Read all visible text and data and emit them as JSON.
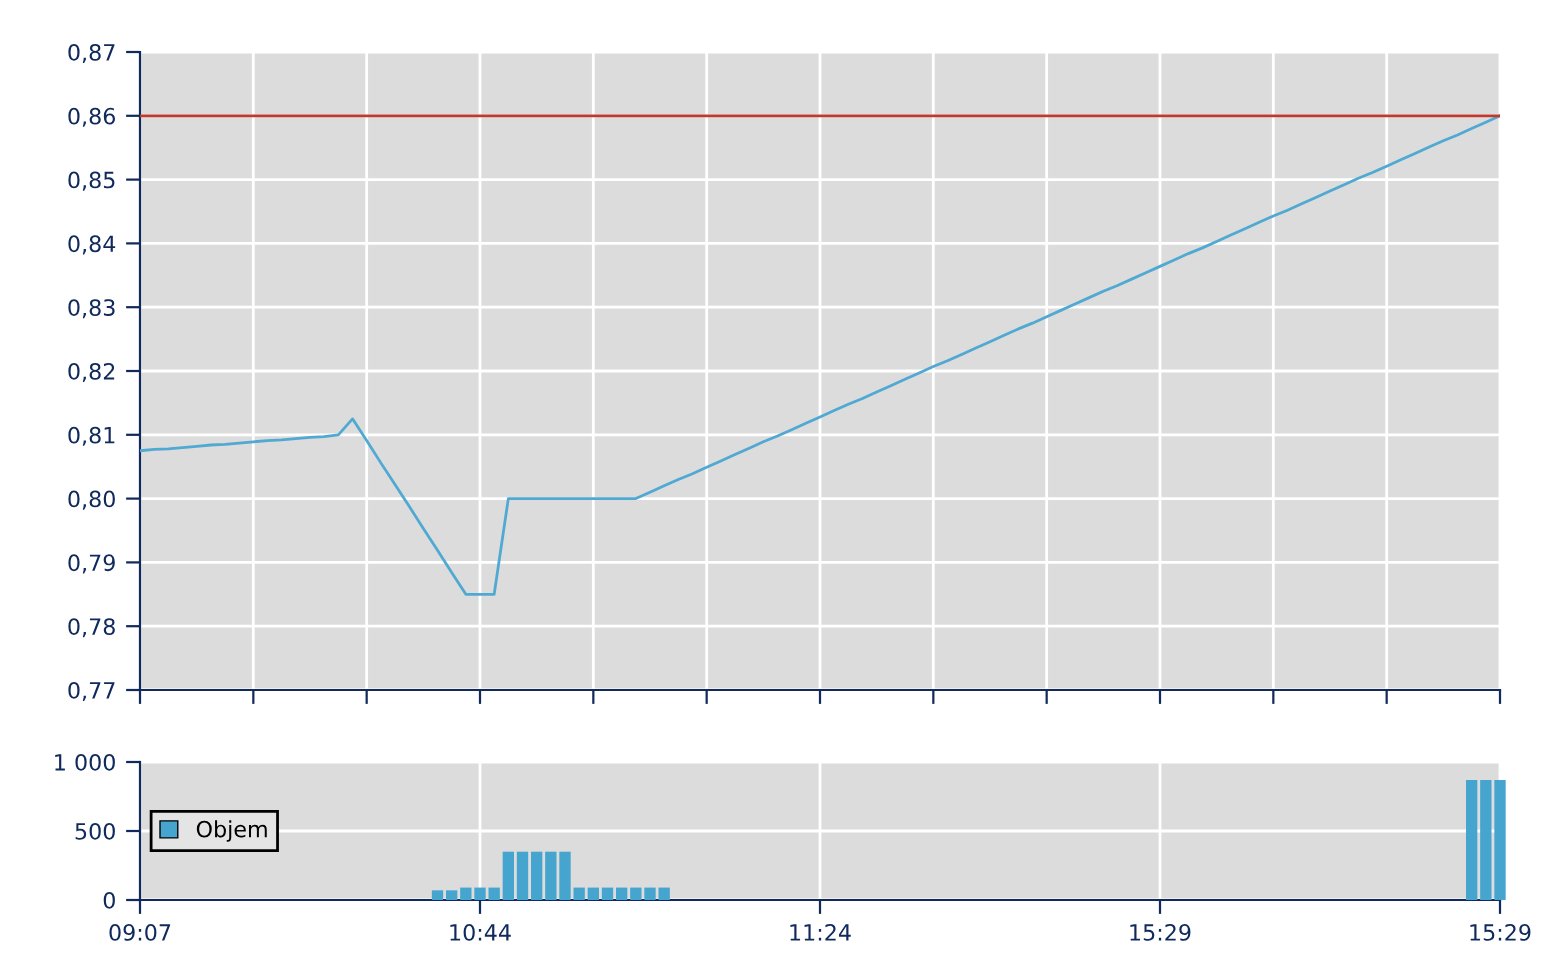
{
  "chart_data": [
    {
      "type": "line",
      "categories": [
        null,
        null,
        null,
        null,
        null,
        null,
        null,
        null,
        null,
        null,
        null,
        null,
        null,
        null,
        null,
        null,
        null,
        null,
        null,
        null,
        null,
        null,
        null,
        null,
        null,
        null,
        null,
        null,
        null,
        null,
        null,
        null,
        null,
        null,
        null,
        null,
        null,
        null,
        null,
        null,
        null,
        null,
        null,
        null,
        null,
        null,
        null,
        null,
        null,
        null,
        null,
        null,
        null,
        null,
        null,
        null,
        null,
        null,
        null,
        null,
        null,
        null,
        null,
        null,
        null,
        null,
        null,
        null,
        null,
        null,
        null,
        null,
        null,
        null,
        null,
        null,
        null,
        null,
        null,
        null,
        null,
        null,
        null,
        null,
        null,
        null,
        null,
        null,
        null,
        null,
        null,
        null,
        null,
        null,
        null,
        null,
        null
      ],
      "series": [
        {
          "color": "#4fa9d2",
          "values": [
            0.8075,
            0.8077,
            0.8078,
            0.808,
            0.8082,
            0.8084,
            0.8085,
            0.8087,
            0.8089,
            0.8091,
            0.8092,
            0.8094,
            0.8096,
            0.8097,
            0.81,
            0.8125,
            0.8091,
            0.8056,
            0.8022,
            0.7988,
            0.7953,
            0.7919,
            0.7884,
            0.785,
            0.785,
            0.785,
            0.8,
            0.8,
            0.8,
            0.8,
            0.8,
            0.8,
            0.8,
            0.8,
            0.8,
            0.8,
            0.801,
            0.802,
            0.803,
            0.8039,
            0.8049,
            0.8059,
            0.8069,
            0.8079,
            0.8089,
            0.8098,
            0.8108,
            0.8118,
            0.8128,
            0.8138,
            0.8148,
            0.8157,
            0.8167,
            0.8177,
            0.8187,
            0.8197,
            0.8207,
            0.8216,
            0.8226,
            0.8236,
            0.8246,
            0.8256,
            0.8266,
            0.8275,
            0.8285,
            0.8295,
            0.8305,
            0.8315,
            0.8325,
            0.8334,
            0.8344,
            0.8354,
            0.8364,
            0.8374,
            0.8384,
            0.8393,
            0.8403,
            0.8413,
            0.8423,
            0.8433,
            0.8443,
            0.8452,
            0.8462,
            0.8472,
            0.8482,
            0.8492,
            0.8502,
            0.8511,
            0.8521,
            0.8531,
            0.8541,
            0.8551,
            0.8561,
            0.857,
            0.858,
            0.859,
            0.86
          ]
        }
      ],
      "ylim": [
        0.77,
        0.87
      ],
      "yticks": [
        {
          "value": 0.77,
          "label": "0,77"
        },
        {
          "value": 0.78,
          "label": "0,78"
        },
        {
          "value": 0.79,
          "label": "0,79"
        },
        {
          "value": 0.8,
          "label": "0,80"
        },
        {
          "value": 0.81,
          "label": "0,81"
        },
        {
          "value": 0.82,
          "label": "0,82"
        },
        {
          "value": 0.83,
          "label": "0,83"
        },
        {
          "value": 0.84,
          "label": "0,84"
        },
        {
          "value": 0.85,
          "label": "0,85"
        },
        {
          "value": 0.86,
          "label": "0,86"
        },
        {
          "value": 0.87,
          "label": "0,87"
        }
      ],
      "ref_lines": [
        {
          "axis": "y",
          "value": 0.86,
          "color": "#c0392b"
        }
      ],
      "grid": true
    },
    {
      "type": "bar",
      "categories": [
        "09:07",
        null,
        null,
        null,
        null,
        null,
        null,
        null,
        null,
        null,
        null,
        null,
        null,
        null,
        null,
        null,
        null,
        null,
        null,
        null,
        null,
        null,
        null,
        null,
        "10:44",
        null,
        null,
        null,
        null,
        null,
        null,
        null,
        null,
        null,
        null,
        null,
        null,
        null,
        null,
        null,
        null,
        null,
        null,
        null,
        null,
        null,
        null,
        null,
        "11:24",
        null,
        null,
        null,
        null,
        null,
        null,
        null,
        null,
        null,
        null,
        null,
        null,
        null,
        null,
        null,
        null,
        null,
        null,
        null,
        null,
        null,
        null,
        null,
        "15:29",
        null,
        null,
        null,
        null,
        null,
        null,
        null,
        null,
        null,
        null,
        null,
        null,
        null,
        null,
        null,
        null,
        null,
        null,
        null,
        null,
        null,
        null,
        null,
        "15:29"
      ],
      "series": [
        {
          "name": "Objem",
          "color": "#45a5cf",
          "values": [
            null,
            null,
            null,
            null,
            null,
            null,
            null,
            null,
            null,
            null,
            null,
            null,
            null,
            null,
            null,
            null,
            null,
            null,
            null,
            null,
            null,
            70,
            70,
            90,
            90,
            90,
            350,
            350,
            350,
            350,
            350,
            90,
            90,
            90,
            90,
            90,
            90,
            90,
            null,
            null,
            null,
            null,
            null,
            null,
            null,
            null,
            null,
            null,
            null,
            null,
            null,
            null,
            null,
            null,
            null,
            null,
            null,
            null,
            null,
            null,
            null,
            null,
            null,
            null,
            null,
            null,
            null,
            null,
            null,
            null,
            null,
            null,
            null,
            null,
            null,
            null,
            null,
            null,
            null,
            null,
            null,
            null,
            null,
            null,
            null,
            null,
            null,
            null,
            null,
            null,
            null,
            null,
            null,
            null,
            870,
            870,
            870
          ]
        }
      ],
      "ylim": [
        0,
        1000
      ],
      "yticks": [
        0,
        500,
        {
          "value": 1000,
          "label": "1 000"
        }
      ],
      "grid": true,
      "legend": "left"
    }
  ]
}
